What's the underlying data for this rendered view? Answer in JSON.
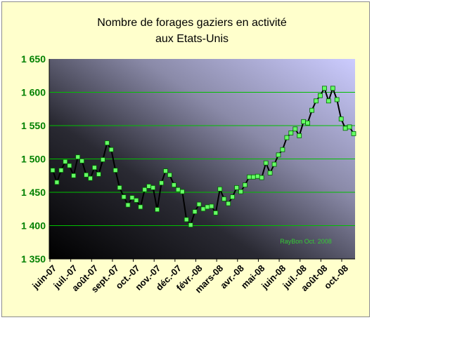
{
  "chart_data": {
    "type": "line",
    "title": "Nombre de forages gaziers en activité",
    "subtitle": "aux Etats-Unis",
    "ylim": [
      1350,
      1650
    ],
    "yticks": [
      1350,
      1400,
      1450,
      1500,
      1550,
      1600,
      1650
    ],
    "ytick_labels": [
      "1 350",
      "1 400",
      "1 450",
      "1 500",
      "1 550",
      "1 600",
      "1 650"
    ],
    "xtick_labels": [
      "juin-07",
      "juil.-07",
      "août-07",
      "sept.-07",
      "oct.-07",
      "nov.-07",
      "déc.-07",
      "févr.-08",
      "mars-08",
      "avr.-08",
      "mai-08",
      "juin-08",
      "juil.-08",
      "août-08",
      "oct.-08"
    ],
    "grid": true,
    "legend": "none",
    "annotation": "RayBon Oct. 2008",
    "series": [
      {
        "values": [
          1483,
          1465,
          1483,
          1496,
          1490,
          1475,
          1503,
          1497,
          1476,
          1471,
          1487,
          1477,
          1499,
          1524,
          1514,
          1483,
          1457,
          1443,
          1431,
          1442,
          1438,
          1428,
          1454,
          1459,
          1457,
          1424,
          1464,
          1482,
          1476,
          1461,
          1454,
          1451,
          1409,
          1401,
          1421,
          1432,
          1425,
          1428,
          1429,
          1419,
          1455,
          1440,
          1433,
          1443,
          1457,
          1451,
          1461,
          1473,
          1473,
          1474,
          1472,
          1494,
          1479,
          1492,
          1506,
          1514,
          1532,
          1539,
          1545,
          1535,
          1556,
          1554,
          1573,
          1587,
          1595,
          1606,
          1587,
          1606,
          1589,
          1560,
          1546,
          1548,
          1538
        ],
        "color": "#66ff66"
      }
    ]
  },
  "colors": {
    "frame_bg": "#ffffcc",
    "gridline": "#00c000",
    "axis_label": "#008000",
    "marker_fill": "#66ff66",
    "line": "#000000"
  }
}
